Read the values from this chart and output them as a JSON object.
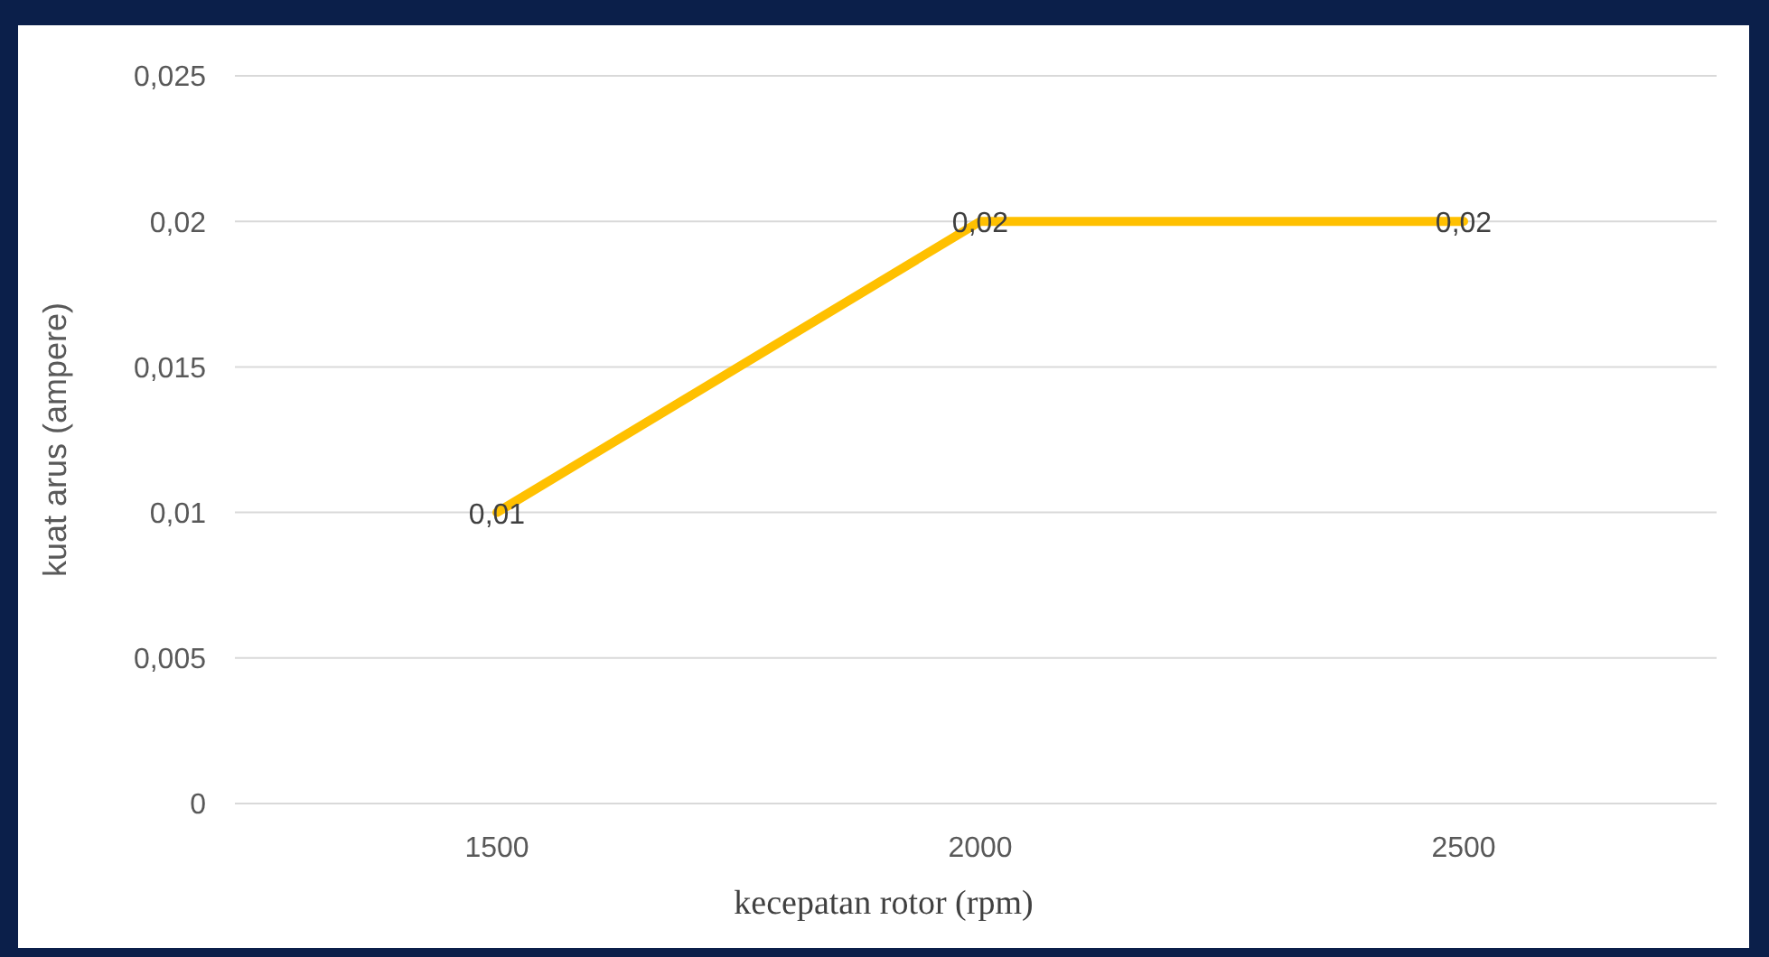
{
  "chart_data": {
    "type": "line",
    "xlabel": "kecepatan rotor (rpm)",
    "ylabel": "kuat arus (ampere)",
    "categories": [
      "1500",
      "2000",
      "2500"
    ],
    "series": [
      {
        "color": "#ffc000",
        "values": [
          0.01,
          0.02,
          0.02
        ],
        "value_labels": [
          "0,01",
          "0,02",
          "0,02"
        ]
      }
    ],
    "ylim": [
      0,
      0.025
    ],
    "yticks": [
      {
        "value": 0,
        "label": "0"
      },
      {
        "value": 0.005,
        "label": "0,005"
      },
      {
        "value": 0.01,
        "label": "0,01"
      },
      {
        "value": 0.015,
        "label": "0,015"
      },
      {
        "value": 0.02,
        "label": "0,02"
      },
      {
        "value": 0.025,
        "label": "0,025"
      }
    ],
    "grid": "y",
    "legend": false,
    "marker": "none",
    "line_style": "solid"
  }
}
